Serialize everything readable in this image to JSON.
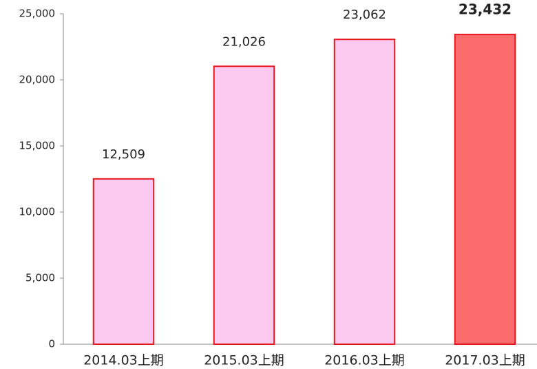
{
  "chart_data": {
    "type": "bar",
    "categories": [
      "2014.03上期",
      "2015.03上期",
      "2016.03上期",
      "2017.03上期"
    ],
    "values": [
      12509,
      21026,
      23062,
      23432
    ],
    "value_labels": [
      "12,509",
      "21,026",
      "23,062",
      "23,432"
    ],
    "colors": [
      "#fccaf0",
      "#fccaf0",
      "#fccaf0",
      "#fa6b6b"
    ],
    "edge_color": "#e8141c",
    "highlight_index": 3,
    "ylim": [
      0,
      25000
    ],
    "yticks": [
      0,
      {
        "value": 5000,
        "label": "5,000"
      },
      {
        "value": 10000,
        "label": "10,000"
      },
      {
        "value": 15000,
        "label": "15,000"
      },
      {
        "value": 20000,
        "label": "20,000"
      },
      {
        "value": 25000,
        "label": "25,000"
      }
    ],
    "grid": false
  }
}
